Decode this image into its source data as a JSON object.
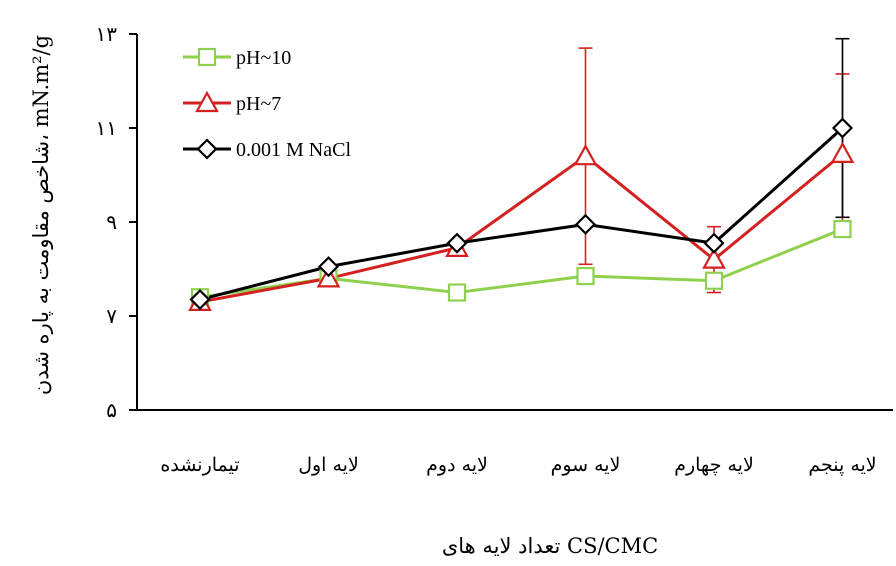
{
  "chart_data": {
    "type": "line",
    "xlabel": "تعداد لایه های CS/CMC",
    "ylabel": "شاخص مقاومت به پاره شدن، mN.m²/g",
    "ylim": [
      5,
      13
    ],
    "yticks": [
      5,
      7,
      9,
      11,
      13
    ],
    "ytick_labels": [
      "۵",
      "۷",
      "۹",
      "۱۱",
      "۱۳"
    ],
    "categories": [
      "تیمارنشده",
      "لایه اول",
      "لایه دوم",
      "لایه سوم",
      "لایه چهارم",
      "لایه پنجم"
    ],
    "grid": false,
    "legend_position": "top-left",
    "series": [
      {
        "name": "pH~10",
        "color": "#8fd14f",
        "marker": "square",
        "values": [
          7.4,
          7.8,
          7.5,
          7.85,
          7.75,
          8.85
        ],
        "error": [
          0,
          0,
          0,
          0,
          0,
          0
        ]
      },
      {
        "name": "pH~7",
        "color": "#d42020",
        "marker": "triangle",
        "values": [
          7.3,
          7.8,
          8.45,
          10.4,
          8.2,
          10.45
        ],
        "error": [
          0,
          0,
          0,
          2.3,
          0.7,
          1.7
        ]
      },
      {
        "name": "0.001 M NaCl",
        "color": "#000000",
        "marker": "diamond",
        "values": [
          7.35,
          8.05,
          8.55,
          8.95,
          8.55,
          11.0
        ],
        "error": [
          0,
          0,
          0,
          0,
          0,
          1.9
        ]
      }
    ]
  }
}
